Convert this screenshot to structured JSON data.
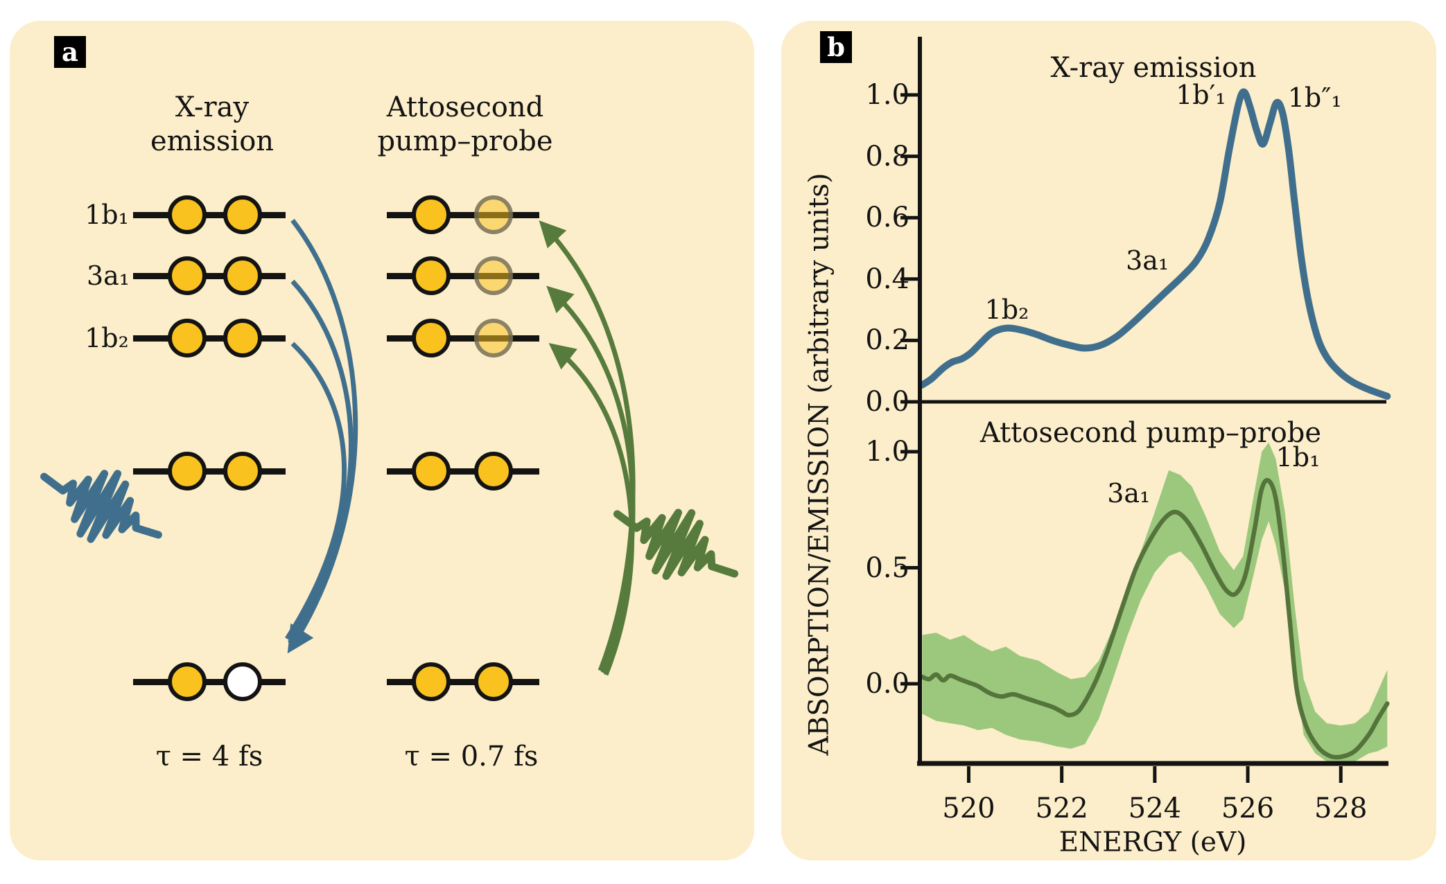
{
  "colors": {
    "background": "#FCEECA",
    "ink": "#131313",
    "blue": "#406F8E",
    "green": "#567B3C",
    "band_green": "#9CC87E",
    "line_green": "#55743B",
    "electron_yellow": "#F9C21F"
  },
  "panel_a": {
    "badge": "a",
    "columns": [
      {
        "title": "X-ray\nemission",
        "tau": "τ = 4 fs"
      },
      {
        "title": "Attosecond\npump–probe",
        "tau": "τ = 0.7 fs"
      }
    ],
    "orbitals": [
      "1b₁",
      "3a₁",
      "1b₂"
    ]
  },
  "panel_b": {
    "badge": "b",
    "ylabel": "ABSORPTION/EMISSION (arbitrary units)",
    "xlabel": "ENERGY (eV)"
  },
  "chart_data": [
    {
      "type": "line",
      "title": "X-ray emission",
      "xlabel": "ENERGY (eV)",
      "ylabel": "ABSORPTION/EMISSION (arbitrary units)",
      "xlim": [
        518.95,
        529.0
      ],
      "ylim": [
        0.0,
        1.05
      ],
      "xticks": [
        520,
        522,
        524,
        526,
        528
      ],
      "yticks": [
        "1.0",
        "0.8",
        "0.6",
        "0.4",
        "0.2",
        "0.0"
      ],
      "grid": false,
      "legend": "none",
      "series": [
        {
          "name": "X-ray emission spectrum",
          "color": "#406F8E",
          "x": [
            519.0,
            519.2,
            519.45,
            519.65,
            519.85,
            520.05,
            520.25,
            520.5,
            520.8,
            521.1,
            521.45,
            521.8,
            522.15,
            522.5,
            522.85,
            523.2,
            523.55,
            523.9,
            524.25,
            524.6,
            524.9,
            525.15,
            525.4,
            525.6,
            525.8,
            525.92,
            526.05,
            526.2,
            526.33,
            526.48,
            526.62,
            526.75,
            526.88,
            527.0,
            527.15,
            527.3,
            527.5,
            527.7,
            527.95,
            528.25,
            528.6,
            529.0
          ],
          "y": [
            0.055,
            0.075,
            0.11,
            0.13,
            0.14,
            0.16,
            0.19,
            0.225,
            0.24,
            0.235,
            0.22,
            0.2,
            0.185,
            0.175,
            0.185,
            0.215,
            0.26,
            0.31,
            0.36,
            0.41,
            0.46,
            0.53,
            0.65,
            0.82,
            0.97,
            1.01,
            0.96,
            0.88,
            0.84,
            0.91,
            0.975,
            0.94,
            0.82,
            0.66,
            0.47,
            0.33,
            0.21,
            0.145,
            0.1,
            0.065,
            0.04,
            0.018
          ]
        }
      ],
      "annotations": [
        {
          "label": "1b₂",
          "x": 520.82,
          "y": 0.3
        },
        {
          "label": "3a₁",
          "x": 523.84,
          "y": 0.46
        },
        {
          "label": "1b′₁",
          "x": 524.99,
          "y": 1.0
        },
        {
          "label": "1b″₁",
          "x": 527.44,
          "y": 0.99
        }
      ]
    },
    {
      "type": "line+band",
      "title": "Attosecond pump–probe",
      "xlabel": "ENERGY (eV)",
      "ylabel": "ABSORPTION/EMISSION (arbitrary units)",
      "xlim": [
        518.95,
        529.0
      ],
      "ylim": [
        -0.34,
        1.05
      ],
      "xticks": [
        520,
        522,
        524,
        526,
        528
      ],
      "yticks": [
        "1.0",
        "0.5",
        "0.0"
      ],
      "grid": false,
      "legend": "none",
      "series": [
        {
          "name": "pump–probe signal",
          "color": "#55743B",
          "x": [
            519.0,
            519.15,
            519.3,
            519.45,
            519.6,
            519.8,
            520.0,
            520.2,
            520.45,
            520.7,
            520.95,
            521.2,
            521.5,
            521.8,
            522.0,
            522.15,
            522.35,
            522.55,
            522.75,
            523.0,
            523.3,
            523.6,
            523.9,
            524.2,
            524.45,
            524.7,
            525.0,
            525.3,
            525.55,
            525.75,
            525.95,
            526.15,
            526.3,
            526.45,
            526.6,
            526.75,
            526.9,
            527.05,
            527.25,
            527.5,
            527.75,
            528.0,
            528.3,
            528.6,
            528.8,
            529.0
          ],
          "y": [
            0.03,
            0.02,
            0.04,
            0.015,
            0.035,
            0.02,
            0.005,
            -0.01,
            -0.04,
            -0.055,
            -0.045,
            -0.06,
            -0.08,
            -0.1,
            -0.12,
            -0.135,
            -0.12,
            -0.06,
            0.02,
            0.15,
            0.33,
            0.5,
            0.62,
            0.71,
            0.74,
            0.7,
            0.6,
            0.48,
            0.4,
            0.39,
            0.47,
            0.67,
            0.84,
            0.875,
            0.8,
            0.58,
            0.28,
            -0.02,
            -0.18,
            -0.27,
            -0.31,
            -0.315,
            -0.29,
            -0.22,
            -0.15,
            -0.085
          ]
        }
      ],
      "band": {
        "name": "uncertainty band",
        "color": "#9CC87E",
        "x": [
          519.0,
          519.3,
          519.6,
          519.9,
          520.2,
          520.5,
          520.8,
          521.1,
          521.5,
          521.9,
          522.2,
          522.5,
          522.8,
          523.1,
          523.4,
          523.7,
          524.0,
          524.3,
          524.55,
          524.8,
          525.1,
          525.4,
          525.7,
          525.9,
          526.1,
          526.3,
          526.45,
          526.6,
          526.8,
          527.0,
          527.2,
          527.45,
          527.7,
          528.0,
          528.3,
          528.6,
          528.8,
          529.0
        ],
        "hi": [
          0.21,
          0.22,
          0.19,
          0.21,
          0.17,
          0.14,
          0.16,
          0.12,
          0.1,
          0.05,
          0.02,
          0.03,
          0.1,
          0.24,
          0.42,
          0.57,
          0.74,
          0.92,
          0.9,
          0.85,
          0.72,
          0.57,
          0.49,
          0.55,
          0.78,
          1.0,
          1.04,
          0.97,
          0.74,
          0.35,
          0.02,
          -0.12,
          -0.17,
          -0.18,
          -0.17,
          -0.12,
          -0.03,
          0.06
        ],
        "lo": [
          -0.13,
          -0.16,
          -0.17,
          -0.18,
          -0.2,
          -0.19,
          -0.22,
          -0.24,
          -0.25,
          -0.27,
          -0.28,
          -0.26,
          -0.15,
          0.02,
          0.2,
          0.36,
          0.48,
          0.55,
          0.57,
          0.52,
          0.42,
          0.3,
          0.24,
          0.28,
          0.45,
          0.62,
          0.7,
          0.6,
          0.4,
          0.08,
          -0.22,
          -0.3,
          -0.335,
          -0.34,
          -0.335,
          -0.3,
          -0.29,
          -0.27
        ]
      },
      "annotations": [
        {
          "label": "3a₁",
          "x": 523.44,
          "y": 0.82
        },
        {
          "label": "1b₁",
          "x": 527.08,
          "y": 0.975
        }
      ]
    }
  ]
}
